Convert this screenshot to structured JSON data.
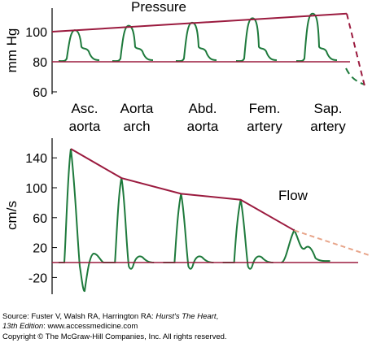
{
  "chart_data": [
    {
      "type": "line",
      "title": "Pressure",
      "ylabel": "mm Hg",
      "yticks": [
        60,
        80,
        100
      ],
      "ylim": [
        60,
        113
      ],
      "sites": [
        {
          "line1": "Asc.",
          "line2": "aorta"
        },
        {
          "line1": "Aorta",
          "line2": "arch"
        },
        {
          "line1": "Abd.",
          "line2": "aorta"
        },
        {
          "line1": "Fem.",
          "line2": "artery"
        },
        {
          "line1": "Sap.",
          "line2": "artery"
        }
      ],
      "systolic_envelope": [
        [
          0,
          100
        ],
        [
          100,
          112
        ]
      ],
      "diastolic_level": 80,
      "peaks": [
        101,
        104,
        106,
        109,
        112
      ],
      "colors": {
        "envelope": "#9b1b3f",
        "waveform": "#1e7a3c",
        "axis": "#000000"
      }
    },
    {
      "type": "line",
      "title": "Flow",
      "ylabel": "cm/s",
      "yticks": [
        -20,
        20,
        60,
        100,
        140
      ],
      "ylim": [
        -22,
        162
      ],
      "envelope": [
        [
          0,
          152
        ],
        [
          17,
          113
        ],
        [
          37,
          92
        ],
        [
          57,
          84
        ],
        [
          75,
          43
        ],
        [
          100,
          10
        ]
      ],
      "peaks": [
        152,
        113,
        92,
        84,
        43
      ],
      "baseline": 0,
      "colors": {
        "envelope": "#9b1b3f",
        "extrapolation": "#e8a58a",
        "waveform": "#1e7a3c",
        "axis": "#000000"
      }
    }
  ],
  "source": {
    "prefix": "Source: Fuster V, Walsh RA, Harrington RA: ",
    "book": "Hurst's The Heart",
    "edition_italic": "13th Edition",
    "suffix": ": www.accessmedicine.com",
    "copyright": "Copyright © The McGraw-Hill Companies, Inc. All rights reserved."
  }
}
